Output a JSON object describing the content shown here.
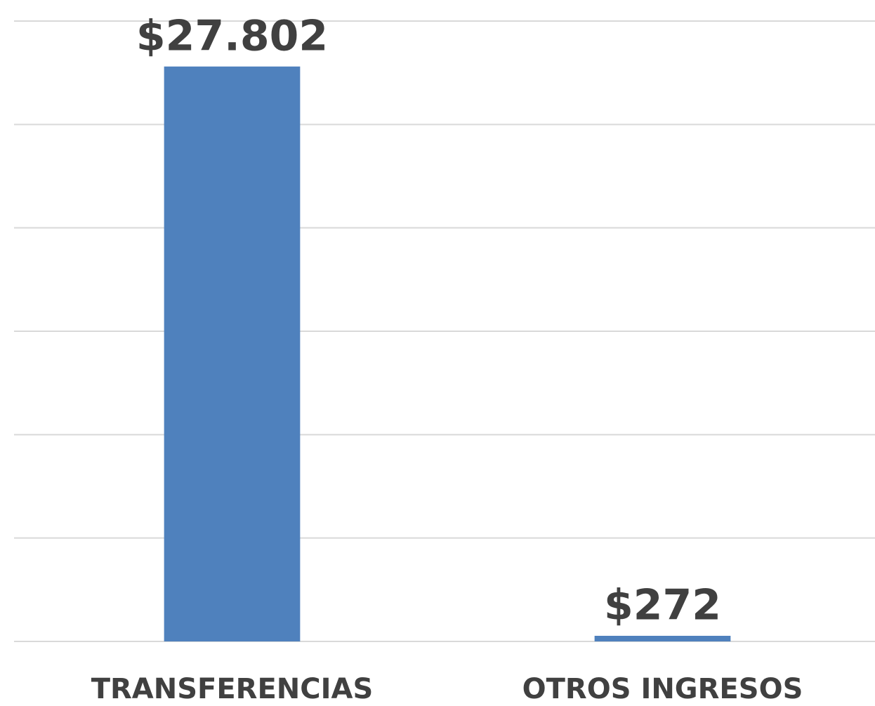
{
  "chart_data": {
    "type": "bar",
    "categories": [
      "TRANSFERENCIAS",
      "OTROS INGRESOS"
    ],
    "values": [
      27802,
      272
    ],
    "value_labels": [
      "$27.802",
      "$272"
    ],
    "color": "#4f81bd",
    "ylim": [
      0,
      30000
    ],
    "yticks": [
      0,
      5000,
      10000,
      15000,
      20000,
      25000,
      30000
    ],
    "grid": true
  }
}
